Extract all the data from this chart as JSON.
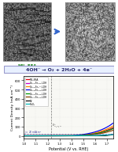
{
  "title": "4OH⁻ → O₂ + 2H₂O + 4e⁻",
  "xlabel": "Potential (V vs. RHE)",
  "ylabel": "Current Density (mA cm⁻²)",
  "xlim": [
    1.0,
    1.75
  ],
  "ylim": [
    -30,
    650
  ],
  "x_ticks": [
    1.0,
    1.1,
    1.2,
    1.3,
    1.4,
    1.5,
    1.6,
    1.7
  ],
  "y_ticks": [
    0,
    100,
    200,
    300,
    400,
    500,
    600
  ],
  "e_eq_x": 1.23,
  "j_line_y": 20,
  "background_color": "#ffffff",
  "plot_bg": "#f8f8f4",
  "title_bg": "#e8f0ff",
  "title_color": "#222266",
  "series": [
    {
      "label": "MIL-88A",
      "color": "#dd0011",
      "onset": 1.435,
      "steep": 13.0
    },
    {
      "label": "Co₀.₁₇Fe₁.₈₃-LDH",
      "color": "#cc00cc",
      "onset": 1.445,
      "steep": 12.5
    },
    {
      "label": "Co₀.₂₂Fe₁.⁷⁷-LDH",
      "color": "#ff8800",
      "onset": 1.415,
      "steep": 13.5
    },
    {
      "label": "Co₀.₃₈Fe₁.₆₂-LDH",
      "color": "#0000ee",
      "onset": 1.395,
      "steep": 15.0
    },
    {
      "label": "Co₀.₃₇Fe₁.₆₂-LDH",
      "color": "#009900",
      "onset": 1.44,
      "steep": 12.0
    },
    {
      "label": "Co₀.‹₇Fe₁.₀₂-LDH",
      "color": "#884400",
      "onset": 1.465,
      "steep": 11.0
    },
    {
      "label": "NF",
      "color": "#111111",
      "onset": 1.68,
      "steep": 25.0
    },
    {
      "label": "RuO₂",
      "color": "#00bbbb",
      "onset": 1.52,
      "steep": 4.0
    }
  ]
}
